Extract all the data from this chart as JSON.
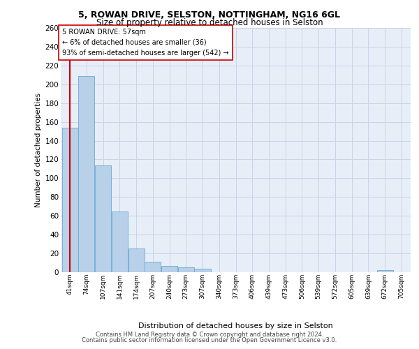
{
  "title1": "5, ROWAN DRIVE, SELSTON, NOTTINGHAM, NG16 6GL",
  "title2": "Size of property relative to detached houses in Selston",
  "xlabel": "Distribution of detached houses by size in Selston",
  "ylabel": "Number of detached properties",
  "bin_labels": [
    "41sqm",
    "74sqm",
    "107sqm",
    "141sqm",
    "174sqm",
    "207sqm",
    "240sqm",
    "273sqm",
    "307sqm",
    "340sqm",
    "373sqm",
    "406sqm",
    "439sqm",
    "473sqm",
    "506sqm",
    "539sqm",
    "572sqm",
    "605sqm",
    "639sqm",
    "672sqm",
    "705sqm"
  ],
  "bar_values": [
    154,
    209,
    114,
    65,
    25,
    11,
    7,
    5,
    4,
    0,
    0,
    0,
    0,
    0,
    0,
    0,
    0,
    0,
    0,
    2,
    0
  ],
  "bar_color": "#b8d0e8",
  "bar_edge_color": "#6aaad4",
  "background_color": "#e8eef8",
  "grid_color": "#c8d4e8",
  "red_line_color": "#cc0000",
  "ylim_max": 260,
  "ytick_step": 20,
  "annotation_line1": "5 ROWAN DRIVE: 57sqm",
  "annotation_line2": "← 6% of detached houses are smaller (36)",
  "annotation_line3": "93% of semi-detached houses are larger (542) →",
  "footer1": "Contains HM Land Registry data © Crown copyright and database right 2024.",
  "footer2": "Contains public sector information licensed under the Open Government Licence v3.0."
}
